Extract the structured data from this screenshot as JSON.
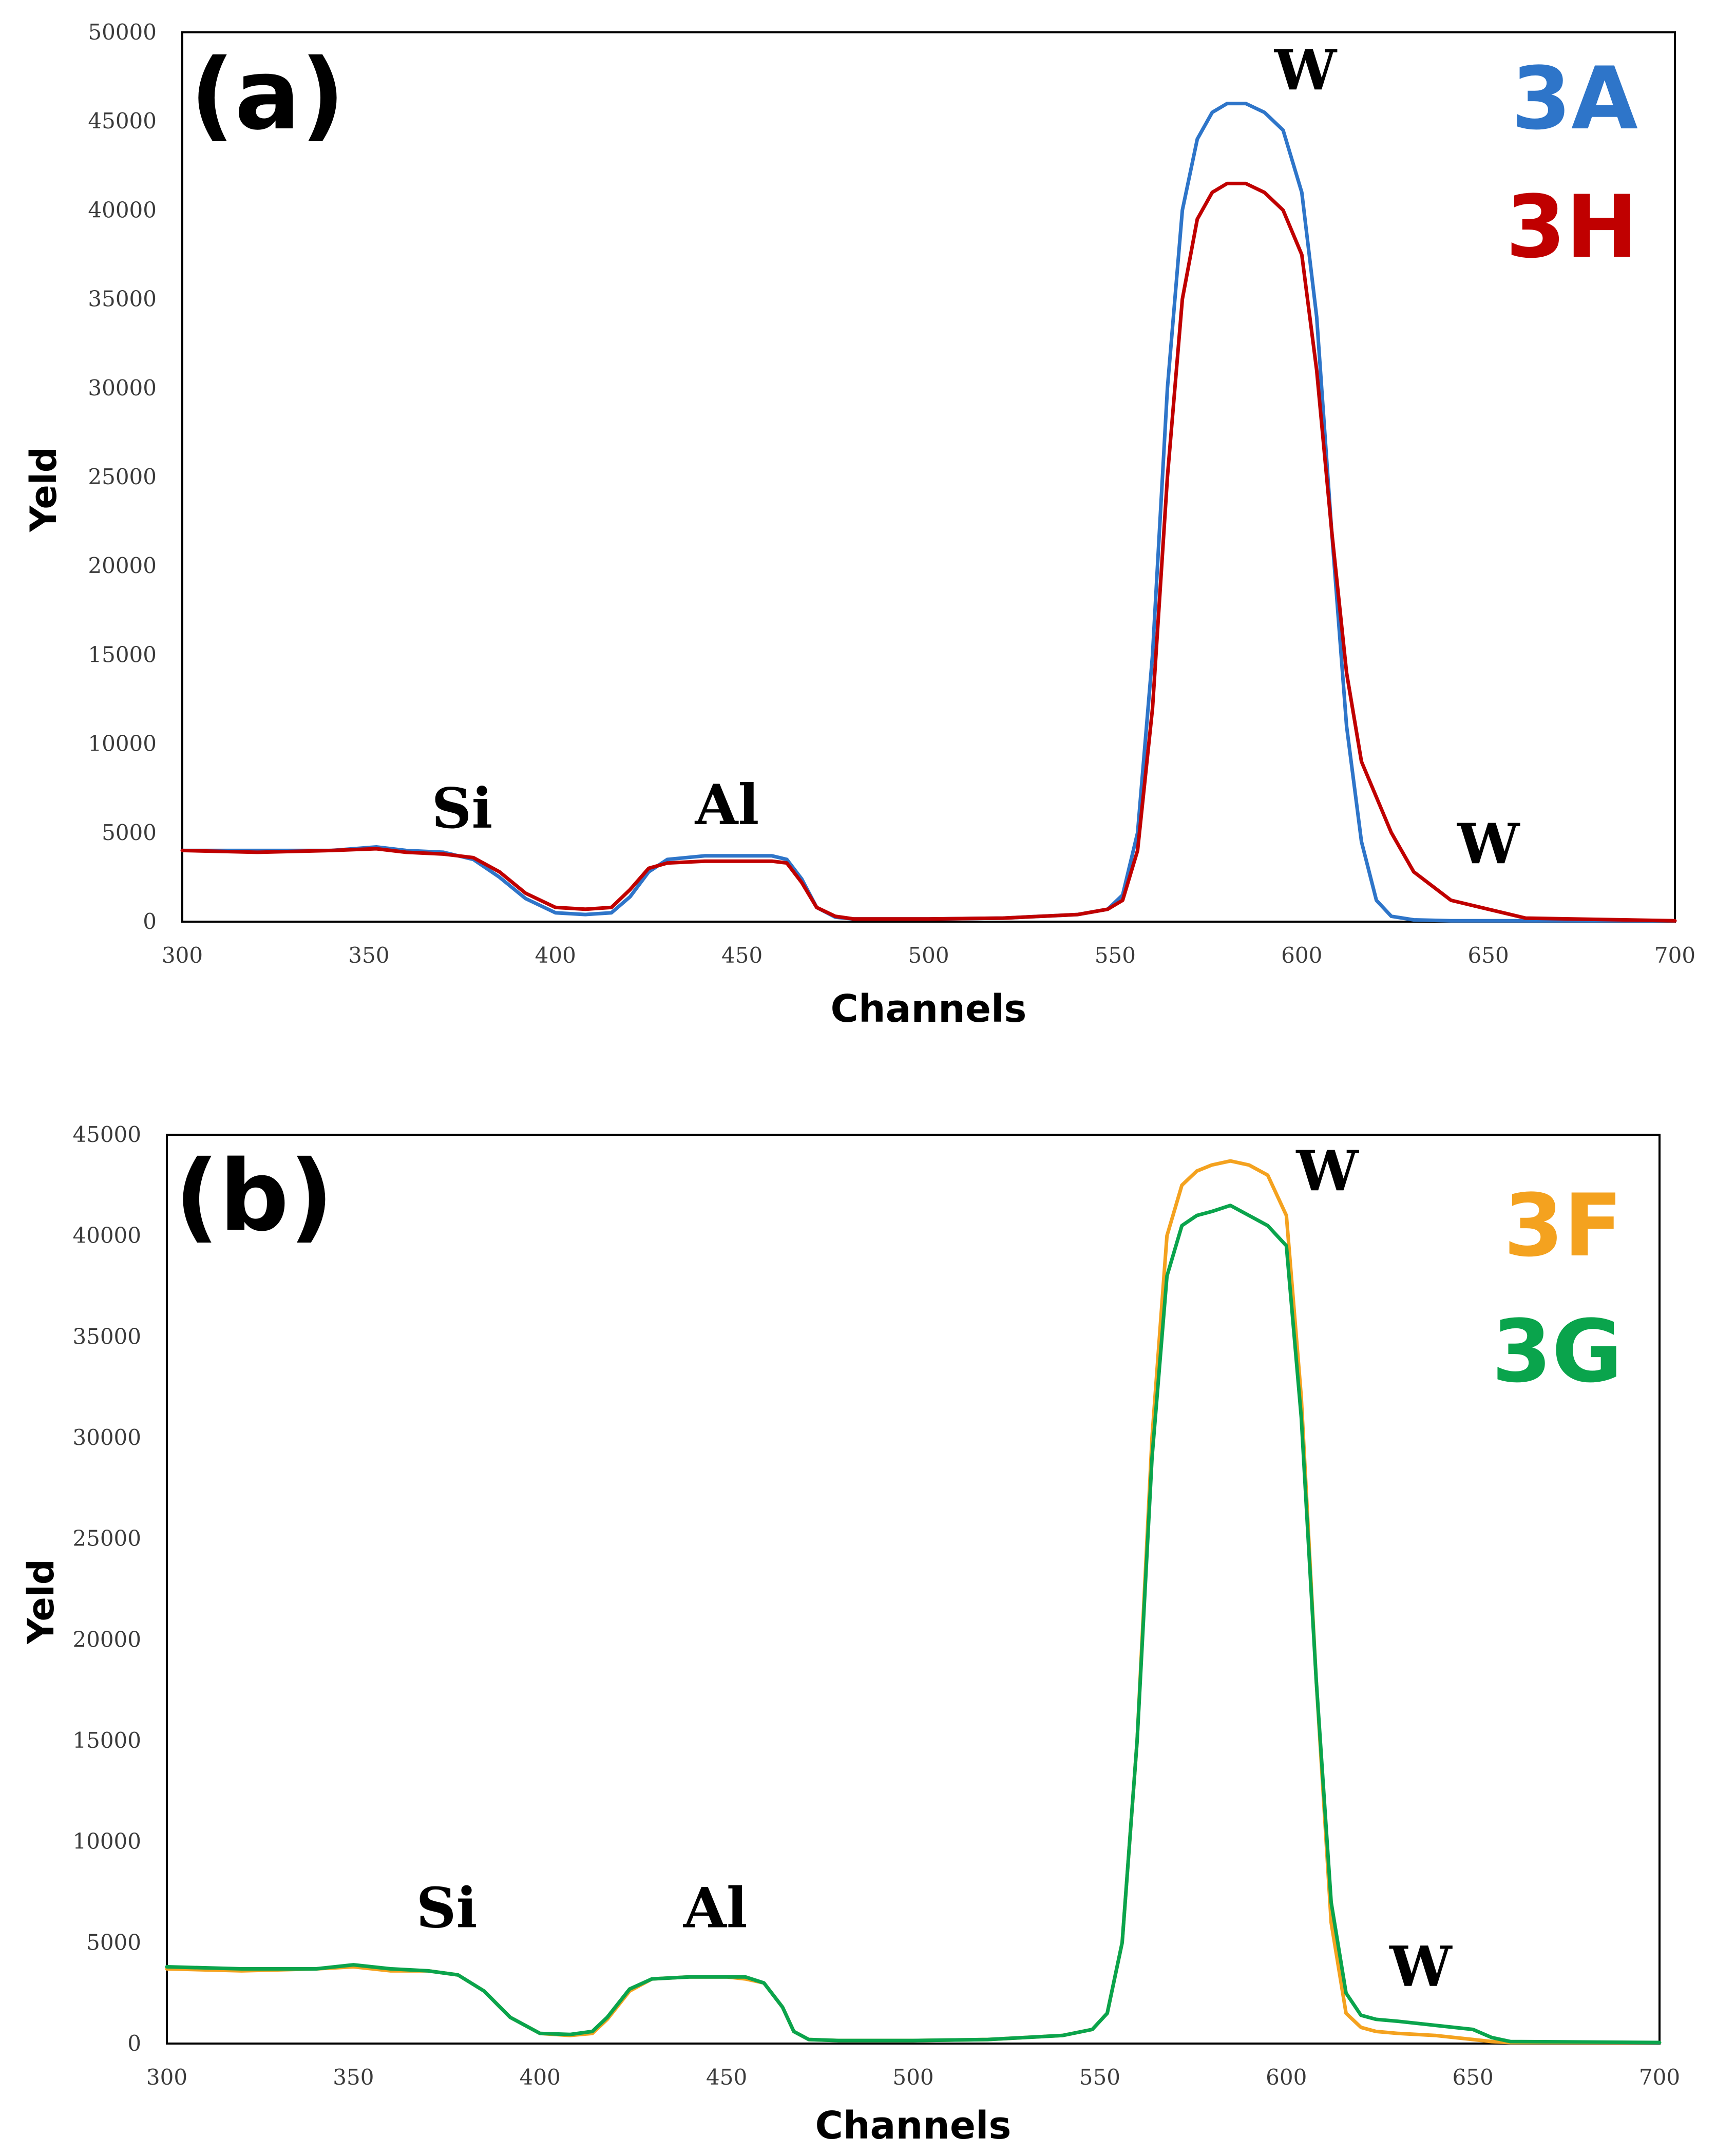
{
  "colors": {
    "3A": "#2e75c9",
    "3H": "#c00000",
    "3F": "#f4a21f",
    "3G": "#0aa44c"
  },
  "chart_data": [
    {
      "type": "line",
      "panel_label": "(a)",
      "xlabel": "Channels",
      "ylabel": "Yeld",
      "xlim": [
        300,
        700
      ],
      "ylim": [
        0,
        50000
      ],
      "x_ticks": [
        "300",
        "350",
        "400",
        "450",
        "500",
        "550",
        "600",
        "650",
        "700"
      ],
      "y_ticks": [
        "0",
        "5000",
        "10000",
        "15000",
        "20000",
        "25000",
        "30000",
        "35000",
        "40000",
        "45000",
        "50000"
      ],
      "series": [
        {
          "name": "3A",
          "color": "#2e75c9",
          "x": [
            300,
            320,
            340,
            352,
            360,
            370,
            378,
            385,
            392,
            400,
            408,
            415,
            420,
            425,
            430,
            440,
            450,
            458,
            462,
            466,
            470,
            475,
            480,
            500,
            520,
            540,
            548,
            552,
            556,
            560,
            564,
            568,
            572,
            576,
            580,
            585,
            590,
            595,
            600,
            604,
            608,
            612,
            616,
            620,
            624,
            630,
            640,
            650,
            660,
            700
          ],
          "y": [
            4000,
            4000,
            4000,
            4200,
            4000,
            3900,
            3500,
            2500,
            1300,
            500,
            400,
            500,
            1400,
            2800,
            3500,
            3700,
            3700,
            3700,
            3500,
            2400,
            800,
            250,
            150,
            150,
            200,
            400,
            700,
            1500,
            5000,
            15000,
            30000,
            40000,
            44000,
            45500,
            46000,
            46000,
            45500,
            44500,
            41000,
            34000,
            22000,
            11000,
            4500,
            1200,
            300,
            100,
            50,
            50,
            50,
            50
          ]
        },
        {
          "name": "3H",
          "color": "#c00000",
          "x": [
            300,
            320,
            340,
            352,
            360,
            370,
            378,
            385,
            392,
            400,
            408,
            415,
            420,
            425,
            430,
            440,
            450,
            458,
            462,
            466,
            470,
            475,
            480,
            500,
            520,
            540,
            548,
            552,
            556,
            560,
            564,
            568,
            572,
            576,
            580,
            585,
            590,
            595,
            600,
            604,
            608,
            612,
            616,
            620,
            624,
            630,
            640,
            650,
            660,
            700
          ],
          "y": [
            4000,
            3900,
            4000,
            4100,
            3900,
            3800,
            3600,
            2800,
            1600,
            800,
            700,
            800,
            1800,
            3000,
            3300,
            3400,
            3400,
            3400,
            3300,
            2200,
            800,
            300,
            150,
            150,
            200,
            400,
            700,
            1200,
            4000,
            12000,
            25000,
            35000,
            39500,
            41000,
            41500,
            41500,
            41000,
            40000,
            37500,
            31000,
            22000,
            14000,
            9000,
            7000,
            5000,
            2800,
            1200,
            700,
            200,
            50
          ]
        }
      ],
      "annotations": [
        {
          "text": "Si",
          "x": 375,
          "y": 5000
        },
        {
          "text": "Al",
          "x": 446,
          "y": 5200
        },
        {
          "text": "W",
          "x": 601,
          "y": 46500
        },
        {
          "text": "W",
          "x": 650,
          "y": 3000
        }
      ],
      "legend": [
        "3A",
        "3H"
      ],
      "legend_position": "top-right"
    },
    {
      "type": "line",
      "panel_label": "(b)",
      "xlabel": "Channels",
      "ylabel": "Yeld",
      "xlim": [
        300,
        700
      ],
      "ylim": [
        0,
        45000
      ],
      "x_ticks": [
        "300",
        "350",
        "400",
        "450",
        "500",
        "550",
        "600",
        "650",
        "700"
      ],
      "y_ticks": [
        "0",
        "5000",
        "10000",
        "15000",
        "20000",
        "25000",
        "30000",
        "35000",
        "40000",
        "45000"
      ],
      "series": [
        {
          "name": "3F",
          "color": "#f4a21f",
          "x": [
            300,
            320,
            340,
            350,
            360,
            370,
            378,
            385,
            392,
            400,
            408,
            414,
            418,
            424,
            430,
            440,
            450,
            455,
            460,
            465,
            468,
            472,
            480,
            500,
            520,
            540,
            548,
            552,
            556,
            560,
            564,
            568,
            572,
            576,
            580,
            585,
            590,
            595,
            600,
            604,
            608,
            612,
            616,
            620,
            624,
            630,
            640,
            650,
            655,
            660,
            700
          ],
          "y": [
            3700,
            3600,
            3700,
            3800,
            3600,
            3600,
            3400,
            2600,
            1300,
            500,
            400,
            500,
            1200,
            2600,
            3200,
            3300,
            3300,
            3200,
            3000,
            1800,
            600,
            200,
            150,
            150,
            200,
            400,
            700,
            1500,
            5000,
            15000,
            30000,
            40000,
            42500,
            43200,
            43500,
            43700,
            43500,
            43000,
            41000,
            32000,
            18000,
            6000,
            1500,
            800,
            600,
            500,
            400,
            200,
            100,
            50,
            50
          ]
        },
        {
          "name": "3G",
          "color": "#0aa44c",
          "x": [
            300,
            320,
            340,
            350,
            360,
            370,
            378,
            385,
            392,
            400,
            408,
            414,
            418,
            424,
            430,
            440,
            450,
            455,
            460,
            465,
            468,
            472,
            480,
            500,
            520,
            540,
            548,
            552,
            556,
            560,
            564,
            568,
            572,
            576,
            580,
            585,
            590,
            595,
            600,
            604,
            608,
            612,
            616,
            620,
            624,
            630,
            640,
            650,
            655,
            660,
            700
          ],
          "y": [
            3800,
            3700,
            3700,
            3900,
            3700,
            3600,
            3400,
            2600,
            1300,
            500,
            450,
            600,
            1300,
            2700,
            3200,
            3300,
            3300,
            3300,
            3000,
            1800,
            600,
            200,
            150,
            150,
            200,
            400,
            700,
            1500,
            5000,
            15000,
            29000,
            38000,
            40500,
            41000,
            41200,
            41500,
            41000,
            40500,
            39500,
            31000,
            18000,
            7000,
            2500,
            1400,
            1200,
            1100,
            900,
            700,
            300,
            100,
            50
          ]
        }
      ],
      "annotations": [
        {
          "text": "Si",
          "x": 375,
          "y": 5500
        },
        {
          "text": "Al",
          "x": 447,
          "y": 5500
        },
        {
          "text": "W",
          "x": 611,
          "y": 42000
        },
        {
          "text": "W",
          "x": 636,
          "y": 2600
        }
      ],
      "legend": [
        "3F",
        "3G"
      ],
      "legend_position": "top-right"
    }
  ]
}
